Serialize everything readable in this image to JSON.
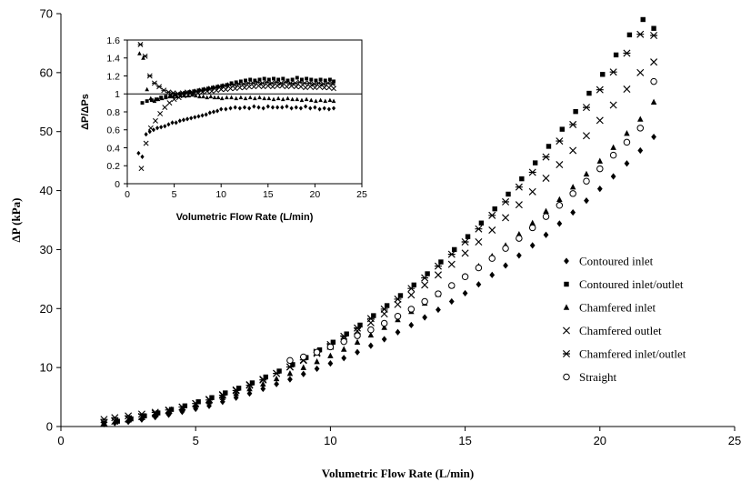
{
  "chart_data": [
    {
      "type": "scatter",
      "title": "",
      "xlabel": "Volumetric Flow Rate (L/min)",
      "ylabel": "ΔP (kPa)",
      "xlim": [
        0,
        25
      ],
      "ylim": [
        0,
        70
      ],
      "xticks": [
        "0",
        "5",
        "10",
        "15",
        "20",
        "25"
      ],
      "yticks": [
        "0",
        "10",
        "20",
        "30",
        "40",
        "50",
        "60",
        "70"
      ],
      "grid": false,
      "legend_position": "right",
      "series": [
        {
          "name": "Contoured inlet",
          "marker": "diamond",
          "x": [
            1.6,
            2.0,
            2.5,
            3.0,
            3.5,
            4.0,
            4.5,
            5.0,
            5.5,
            6.0,
            6.5,
            7.0,
            7.5,
            8.0,
            8.5,
            9.0,
            9.5,
            10.0,
            10.5,
            11.0,
            11.5,
            12.0,
            12.5,
            13.0,
            13.5,
            14.0,
            14.5,
            15.0,
            15.5,
            16.0,
            16.5,
            17.0,
            17.5,
            18.0,
            18.5,
            19.0,
            19.5,
            20.0,
            20.5,
            21.0,
            21.5,
            22.0
          ],
          "y": [
            0.4,
            0.6,
            0.8,
            1.2,
            1.6,
            2.0,
            2.5,
            3.0,
            3.5,
            4.2,
            4.9,
            5.6,
            6.4,
            7.2,
            8.0,
            8.9,
            9.8,
            10.7,
            11.6,
            12.6,
            13.7,
            14.8,
            16.0,
            17.2,
            18.5,
            19.8,
            21.2,
            22.6,
            24.1,
            25.7,
            27.3,
            29.0,
            30.7,
            32.5,
            34.4,
            36.3,
            38.3,
            40.3,
            42.4,
            44.6,
            46.8,
            49.1
          ]
        },
        {
          "name": "Contoured inlet/outlet",
          "marker": "square",
          "x": [
            1.6,
            2.1,
            2.6,
            3.1,
            3.6,
            4.1,
            4.6,
            5.1,
            5.6,
            6.1,
            6.6,
            7.1,
            7.6,
            8.1,
            8.6,
            9.1,
            9.6,
            10.1,
            10.6,
            11.1,
            11.6,
            12.1,
            12.6,
            13.1,
            13.6,
            14.1,
            14.6,
            15.1,
            15.6,
            16.1,
            16.6,
            17.1,
            17.6,
            18.1,
            18.6,
            19.1,
            19.6,
            20.1,
            20.6,
            21.1,
            21.6,
            22.0
          ],
          "y": [
            0.5,
            0.9,
            1.3,
            1.8,
            2.3,
            2.9,
            3.5,
            4.2,
            4.9,
            5.7,
            6.5,
            7.4,
            8.4,
            9.4,
            10.5,
            11.7,
            13.0,
            14.3,
            15.7,
            17.2,
            18.8,
            20.5,
            22.2,
            24.0,
            25.9,
            27.9,
            30.0,
            32.2,
            34.5,
            36.9,
            39.4,
            42.0,
            44.7,
            47.5,
            50.4,
            53.4,
            56.5,
            59.7,
            63.0,
            66.4,
            69.0,
            67.5
          ]
        },
        {
          "name": "Chamfered inlet",
          "marker": "triangle",
          "x": [
            1.6,
            2.0,
            2.5,
            3.0,
            3.5,
            4.0,
            4.5,
            5.0,
            5.5,
            6.0,
            6.5,
            7.0,
            7.5,
            8.0,
            8.5,
            9.0,
            9.5,
            10.0,
            10.5,
            11.0,
            11.5,
            12.0,
            12.5,
            13.0,
            13.5,
            14.0,
            14.5,
            15.0,
            15.5,
            16.0,
            16.5,
            17.0,
            17.5,
            18.0,
            18.5,
            19.0,
            19.5,
            20.0,
            20.5,
            21.0,
            21.5,
            22.0
          ],
          "y": [
            0.5,
            0.8,
            1.1,
            1.5,
            2.0,
            2.5,
            3.0,
            3.6,
            4.2,
            4.9,
            5.6,
            6.4,
            7.2,
            8.1,
            9.0,
            10.0,
            11.0,
            12.0,
            13.1,
            14.3,
            15.5,
            16.8,
            18.1,
            19.5,
            20.9,
            22.4,
            23.9,
            25.5,
            27.2,
            28.9,
            30.7,
            32.6,
            34.5,
            36.5,
            38.5,
            40.6,
            42.8,
            45.0,
            47.3,
            49.7,
            52.1,
            55.0
          ]
        },
        {
          "name": "Chamfered outlet",
          "marker": "x",
          "x": [
            1.6,
            2.0,
            2.5,
            3.0,
            3.5,
            4.0,
            4.5,
            5.0,
            5.5,
            6.0,
            6.5,
            7.0,
            7.5,
            8.0,
            8.5,
            9.0,
            9.5,
            10.0,
            10.5,
            11.0,
            11.5,
            12.0,
            12.5,
            13.0,
            13.5,
            14.0,
            14.5,
            15.0,
            15.5,
            16.0,
            16.5,
            17.0,
            17.5,
            18.0,
            18.5,
            19.0,
            19.5,
            20.0,
            20.5,
            21.0,
            21.5,
            22.0
          ],
          "y": [
            0.6,
            0.9,
            1.3,
            1.7,
            2.2,
            2.7,
            3.3,
            3.9,
            4.6,
            5.4,
            6.2,
            7.1,
            8.0,
            9.0,
            10.1,
            11.2,
            12.4,
            13.6,
            14.9,
            16.2,
            17.6,
            19.1,
            20.7,
            22.3,
            24.0,
            25.7,
            27.5,
            29.4,
            31.3,
            33.3,
            35.4,
            37.6,
            39.8,
            42.1,
            44.4,
            46.8,
            49.3,
            51.9,
            54.5,
            57.2,
            60.0,
            61.8
          ]
        },
        {
          "name": "Chamfered inlet/outlet",
          "marker": "asterisk",
          "x": [
            1.6,
            2.0,
            2.5,
            3.0,
            3.5,
            4.0,
            4.5,
            5.0,
            5.5,
            6.0,
            6.5,
            7.0,
            7.5,
            8.0,
            8.5,
            9.0,
            9.5,
            10.0,
            10.5,
            11.0,
            11.5,
            12.0,
            12.5,
            13.0,
            13.5,
            14.0,
            14.5,
            15.0,
            15.5,
            16.0,
            16.5,
            17.0,
            17.5,
            18.0,
            18.5,
            19.0,
            19.5,
            20.0,
            20.5,
            21.0,
            21.5,
            22.0
          ],
          "y": [
            1.2,
            1.5,
            1.8,
            2.1,
            2.4,
            2.8,
            3.3,
            3.9,
            4.5,
            5.3,
            6.1,
            7.0,
            7.9,
            9.0,
            10.1,
            11.3,
            12.6,
            13.9,
            15.3,
            16.7,
            18.3,
            19.9,
            21.6,
            23.4,
            25.2,
            27.2,
            29.2,
            31.3,
            33.5,
            35.8,
            38.1,
            40.6,
            43.1,
            45.7,
            48.4,
            51.2,
            54.1,
            57.1,
            60.1,
            63.3,
            66.5,
            66.3
          ]
        },
        {
          "name": "Straight",
          "marker": "circle",
          "x": [
            8.5,
            9.0,
            9.5,
            10.0,
            10.5,
            11.0,
            11.5,
            12.0,
            12.5,
            13.0,
            13.5,
            14.0,
            14.5,
            15.0,
            15.5,
            16.0,
            16.5,
            17.0,
            17.5,
            18.0,
            18.5,
            19.0,
            19.5,
            20.0,
            20.5,
            21.0,
            21.5,
            22.0
          ],
          "y": [
            11.2,
            11.8,
            12.6,
            13.5,
            14.4,
            15.4,
            16.4,
            17.5,
            18.7,
            19.9,
            21.2,
            22.5,
            23.9,
            25.4,
            26.9,
            28.5,
            30.2,
            31.9,
            33.7,
            35.6,
            37.5,
            39.5,
            41.6,
            43.7,
            46.0,
            48.2,
            50.6,
            58.5
          ]
        }
      ]
    },
    {
      "type": "scatter",
      "title": "",
      "xlabel": "Volumetric Flow Rate (L/min)",
      "ylabel": "ΔP/ΔPs",
      "xlim": [
        0,
        25
      ],
      "ylim": [
        0,
        1.6
      ],
      "xticks": [
        "0",
        "5",
        "10",
        "15",
        "20",
        "25"
      ],
      "yticks": [
        "0",
        "0.2",
        "0.4",
        "0.6",
        "0.8",
        "1",
        "1.2",
        "1.4",
        "1.6"
      ],
      "reference_line": 1,
      "grid": false,
      "series": [
        {
          "name": "Contoured inlet",
          "marker": "diamond",
          "x": [
            1.2,
            1.6,
            2.0,
            2.4,
            2.8,
            3.2,
            3.6,
            4.0,
            4.4,
            4.8,
            5.2,
            5.6,
            6.0,
            6.4,
            6.8,
            7.2,
            7.6,
            8.0,
            8.4,
            8.8,
            9.2,
            9.6,
            10.0,
            10.5,
            11.0,
            11.5,
            12.0,
            12.5,
            13.0,
            13.5,
            14.0,
            14.5,
            15.0,
            15.5,
            16.0,
            16.5,
            17.0,
            17.5,
            18.0,
            18.5,
            19.0,
            19.5,
            20.0,
            20.5,
            21.0,
            21.5,
            22.0
          ],
          "y": [
            0.34,
            0.3,
            0.55,
            0.58,
            0.6,
            0.62,
            0.63,
            0.64,
            0.66,
            0.68,
            0.68,
            0.7,
            0.71,
            0.72,
            0.73,
            0.74,
            0.75,
            0.76,
            0.77,
            0.79,
            0.8,
            0.81,
            0.83,
            0.83,
            0.84,
            0.85,
            0.84,
            0.85,
            0.84,
            0.86,
            0.85,
            0.84,
            0.86,
            0.85,
            0.85,
            0.85,
            0.86,
            0.84,
            0.85,
            0.84,
            0.86,
            0.84,
            0.85,
            0.83,
            0.84,
            0.83,
            0.84
          ]
        },
        {
          "name": "Contoured inlet/outlet",
          "marker": "square",
          "x": [
            1.6,
            2.1,
            2.6,
            3.1,
            3.6,
            4.1,
            4.6,
            5.1,
            5.6,
            6.1,
            6.6,
            7.1,
            7.6,
            8.1,
            8.6,
            9.1,
            9.6,
            10.1,
            10.6,
            11.1,
            11.6,
            12.1,
            12.6,
            13.1,
            13.6,
            14.1,
            14.6,
            15.1,
            15.6,
            16.1,
            16.6,
            17.1,
            17.6,
            18.1,
            18.6,
            19.1,
            19.6,
            20.1,
            20.6,
            21.1,
            21.6,
            22.0
          ],
          "y": [
            0.9,
            0.92,
            0.93,
            0.94,
            0.96,
            0.97,
            0.98,
            0.99,
            1.0,
            1.01,
            1.02,
            1.03,
            1.04,
            1.05,
            1.06,
            1.07,
            1.08,
            1.09,
            1.1,
            1.12,
            1.13,
            1.14,
            1.15,
            1.16,
            1.15,
            1.16,
            1.17,
            1.16,
            1.17,
            1.16,
            1.17,
            1.15,
            1.16,
            1.18,
            1.16,
            1.17,
            1.16,
            1.15,
            1.16,
            1.15,
            1.16,
            1.14
          ]
        },
        {
          "name": "Chamfered inlet",
          "marker": "triangle",
          "x": [
            1.3,
            1.7,
            2.1,
            2.5,
            2.9,
            3.3,
            3.7,
            4.1,
            4.5,
            4.9,
            5.3,
            5.7,
            6.1,
            6.5,
            6.9,
            7.3,
            7.7,
            8.1,
            8.5,
            8.9,
            9.3,
            9.7,
            10.1,
            10.6,
            11.1,
            11.6,
            12.1,
            12.6,
            13.1,
            13.6,
            14.1,
            14.6,
            15.1,
            15.6,
            16.1,
            16.6,
            17.1,
            17.6,
            18.1,
            18.6,
            19.1,
            19.6,
            20.1,
            20.6,
            21.1,
            21.6,
            22.0
          ],
          "y": [
            1.45,
            1.4,
            1.05,
            0.95,
            0.92,
            0.94,
            0.95,
            0.96,
            0.97,
            0.97,
            0.97,
            0.98,
            0.98,
            0.98,
            0.99,
            0.98,
            0.97,
            0.97,
            0.96,
            0.97,
            0.96,
            0.96,
            0.95,
            0.96,
            0.96,
            0.95,
            0.96,
            0.95,
            0.96,
            0.95,
            0.96,
            0.95,
            0.95,
            0.94,
            0.95,
            0.94,
            0.95,
            0.94,
            0.94,
            0.93,
            0.94,
            0.93,
            0.92,
            0.93,
            0.92,
            0.93,
            0.92
          ]
        },
        {
          "name": "Chamfered outlet",
          "marker": "x",
          "x": [
            1.5,
            2.0,
            2.5,
            3.0,
            3.5,
            4.0,
            4.5,
            5.0,
            5.5,
            6.0,
            6.5,
            7.0,
            7.5,
            8.0,
            8.5,
            9.0,
            9.5,
            10.0,
            10.5,
            11.0,
            11.5,
            12.0,
            12.5,
            13.0,
            13.5,
            14.0,
            14.5,
            15.0,
            15.5,
            16.0,
            16.5,
            17.0,
            17.5,
            18.0,
            18.5,
            19.0,
            19.5,
            20.0,
            20.5,
            21.0,
            21.5,
            22.0
          ],
          "y": [
            0.17,
            0.45,
            0.62,
            0.7,
            0.78,
            0.85,
            0.9,
            0.94,
            0.96,
            0.98,
            0.99,
            1.0,
            1.01,
            1.02,
            1.03,
            1.03,
            1.04,
            1.05,
            1.05,
            1.06,
            1.06,
            1.07,
            1.07,
            1.08,
            1.08,
            1.09,
            1.08,
            1.09,
            1.08,
            1.09,
            1.09,
            1.08,
            1.09,
            1.08,
            1.08,
            1.07,
            1.08,
            1.07,
            1.08,
            1.07,
            1.07,
            1.06
          ]
        },
        {
          "name": "Chamfered inlet/outlet",
          "marker": "asterisk",
          "x": [
            1.4,
            1.9,
            2.4,
            2.9,
            3.4,
            3.9,
            4.4,
            4.9,
            5.4,
            5.9,
            6.4,
            6.9,
            7.4,
            7.9,
            8.4,
            8.9,
            9.4,
            9.9,
            10.4,
            10.9,
            11.4,
            11.9,
            12.4,
            12.9,
            13.4,
            13.9,
            14.4,
            14.9,
            15.4,
            15.9,
            16.4,
            16.9,
            17.4,
            17.9,
            18.4,
            18.9,
            19.4,
            19.9,
            20.4,
            20.9,
            21.4,
            21.9
          ],
          "y": [
            1.55,
            1.42,
            1.2,
            1.12,
            1.08,
            1.04,
            1.02,
            1.01,
            1.0,
            1.01,
            1.02,
            1.02,
            1.03,
            1.04,
            1.05,
            1.06,
            1.07,
            1.08,
            1.09,
            1.1,
            1.1,
            1.11,
            1.11,
            1.12,
            1.12,
            1.13,
            1.12,
            1.13,
            1.12,
            1.13,
            1.12,
            1.13,
            1.12,
            1.12,
            1.13,
            1.12,
            1.12,
            1.11,
            1.12,
            1.11,
            1.12,
            1.11
          ]
        }
      ]
    }
  ]
}
